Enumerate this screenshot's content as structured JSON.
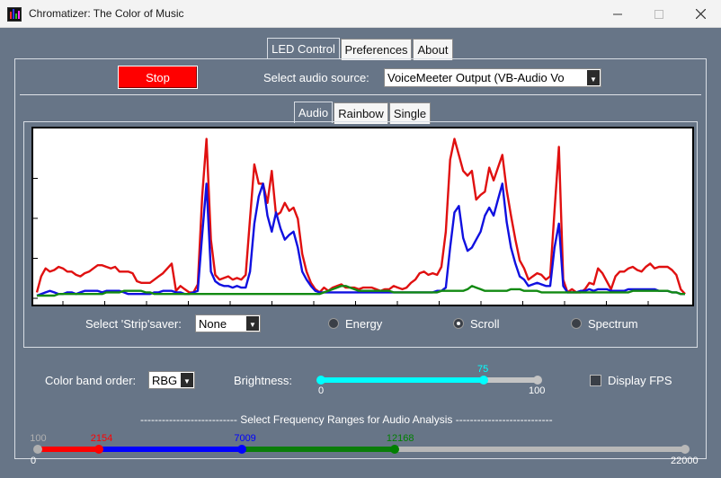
{
  "window": {
    "title": "Chromatizer: The Color of Music"
  },
  "main_tabs": [
    {
      "label": "LED Control",
      "active": true
    },
    {
      "label": "Preferences",
      "active": false
    },
    {
      "label": "About",
      "active": false
    }
  ],
  "controls": {
    "stop_label": "Stop",
    "audio_source_label": "Select audio source:",
    "audio_source_value": "VoiceMeeter Output (VB-Audio Vo"
  },
  "mode_tabs": [
    {
      "label": "Audio",
      "active": true
    },
    {
      "label": "Rainbow",
      "active": false
    },
    {
      "label": "Single",
      "active": false
    }
  ],
  "stripsaver": {
    "label": "Select 'Strip'saver:",
    "value": "None",
    "options": [
      {
        "label": "Energy",
        "checked": false
      },
      {
        "label": "Scroll",
        "checked": true
      },
      {
        "label": "Spectrum",
        "checked": false
      }
    ]
  },
  "color_band": {
    "label": "Color band order:",
    "value": "RBG"
  },
  "brightness": {
    "label": "Brightness:",
    "value": "75",
    "min": "0",
    "max": "100",
    "fraction": 0.75
  },
  "display_fps": {
    "label": "Display FPS",
    "checked": false
  },
  "frequency": {
    "title": "--------------------------- Select Frequency Ranges for Audio Analysis ---------------------------",
    "min": "0",
    "max": "22000",
    "markers": [
      {
        "label": "100",
        "value": 100,
        "color": "#b0b0b0"
      },
      {
        "label": "2154",
        "value": 2154,
        "color": "#ff0000"
      },
      {
        "label": "7009",
        "value": 7009,
        "color": "#0000ff"
      },
      {
        "label": "12168",
        "value": 12168,
        "color": "#008000"
      }
    ],
    "colors": {
      "red": "#ff0000",
      "blue": "#0000ff",
      "green": "#0a7d0a",
      "gray": "#b8b8b8"
    }
  },
  "chart_data": {
    "type": "line",
    "title": "",
    "xlabel": "",
    "ylabel": "",
    "x": [
      0,
      1,
      2,
      3,
      4,
      5,
      6,
      7,
      8,
      9,
      10,
      11,
      12,
      13,
      14,
      15,
      16,
      17,
      18,
      19,
      20,
      21,
      22,
      23,
      24,
      25,
      26,
      27,
      28,
      29,
      30,
      31,
      32,
      33,
      34,
      35,
      36,
      37,
      38,
      39,
      40,
      41,
      42,
      43,
      44,
      45,
      46,
      47,
      48,
      49,
      50,
      51,
      52,
      53,
      54,
      55,
      56,
      57,
      58,
      59,
      60,
      61,
      62,
      63,
      64,
      65,
      66,
      67,
      68,
      69,
      70,
      71,
      72,
      73,
      74,
      75,
      76,
      77,
      78,
      79,
      80,
      81,
      82,
      83,
      84,
      85,
      86,
      87,
      88,
      89,
      90,
      91,
      92,
      93,
      94,
      95,
      96,
      97,
      98,
      99,
      100,
      101,
      102,
      103,
      104,
      105,
      106,
      107,
      108,
      109,
      110,
      111,
      112,
      113,
      114,
      115,
      116,
      117,
      118,
      119,
      120,
      121,
      122,
      123,
      124,
      125,
      126,
      127,
      128,
      129,
      130,
      131,
      132,
      133,
      134,
      135,
      136,
      137,
      138,
      139,
      140,
      141,
      142,
      143,
      144,
      145,
      146,
      147,
      148,
      149
    ],
    "ylim": [
      0,
      100
    ],
    "grid": false,
    "series": [
      {
        "color": "#e01010",
        "values": [
          2,
          12,
          17,
          15,
          16,
          18,
          17,
          15,
          15,
          13,
          12,
          14,
          15,
          17,
          19,
          19,
          18,
          17,
          18,
          15,
          15,
          15,
          14,
          9,
          8,
          8,
          8,
          10,
          12,
          14,
          17,
          20,
          3,
          6,
          4,
          2,
          2,
          7,
          62,
          98,
          35,
          13,
          10,
          11,
          12,
          10,
          11,
          10,
          13,
          48,
          82,
          70,
          70,
          58,
          78,
          50,
          52,
          58,
          53,
          55,
          48,
          26,
          15,
          8,
          4,
          2,
          5,
          3,
          5,
          6,
          7,
          5,
          5,
          5,
          4,
          5,
          5,
          5,
          4,
          3,
          4,
          4,
          6,
          5,
          4,
          5,
          8,
          10,
          14,
          15,
          13,
          14,
          13,
          18,
          40,
          85,
          98,
          88,
          78,
          75,
          78,
          60,
          63,
          65,
          80,
          72,
          80,
          88,
          66,
          50,
          35,
          22,
          17,
          10,
          12,
          14,
          13,
          10,
          12,
          53,
          93,
          10,
          2,
          4,
          2,
          2,
          4,
          8,
          7,
          17,
          14,
          9,
          4,
          12,
          15,
          15,
          17,
          18,
          16,
          15,
          18,
          20,
          17,
          18,
          18,
          18,
          16,
          13,
          4,
          1
        ]
      },
      {
        "color": "#1010e0",
        "values": [
          0,
          1,
          2,
          3,
          2,
          1,
          1,
          2,
          2,
          1,
          2,
          3,
          3,
          3,
          3,
          2,
          3,
          3,
          3,
          3,
          2,
          1,
          1,
          1,
          1,
          1,
          1,
          2,
          2,
          3,
          3,
          3,
          2,
          2,
          1,
          1,
          2,
          3,
          38,
          70,
          15,
          9,
          7,
          6,
          6,
          5,
          6,
          5,
          5,
          15,
          45,
          62,
          70,
          50,
          40,
          52,
          42,
          35,
          38,
          40,
          30,
          15,
          10,
          6,
          3,
          2,
          2,
          2,
          2,
          2,
          2,
          2,
          2,
          2,
          2,
          2,
          2,
          2,
          2,
          2,
          2,
          2,
          2,
          2,
          2,
          2,
          2,
          2,
          2,
          2,
          2,
          2,
          3,
          3,
          5,
          30,
          52,
          56,
          36,
          28,
          30,
          35,
          40,
          50,
          55,
          50,
          60,
          70,
          46,
          30,
          20,
          12,
          10,
          6,
          7,
          8,
          7,
          6,
          6,
          30,
          45,
          6,
          2,
          2,
          2,
          3,
          3,
          4,
          3,
          4,
          4,
          4,
          3,
          3,
          3,
          3,
          4,
          4,
          4,
          4,
          4,
          4,
          4,
          3,
          3,
          3,
          2,
          2,
          1,
          1
        ]
      },
      {
        "color": "#128a12",
        "values": [
          0,
          0,
          0,
          0,
          0,
          1,
          1,
          1,
          1,
          1,
          1,
          1,
          1,
          1,
          1,
          1,
          2,
          2,
          2,
          2,
          3,
          3,
          3,
          3,
          3,
          2,
          2,
          1,
          1,
          1,
          1,
          1,
          1,
          1,
          1,
          1,
          1,
          1,
          1,
          1,
          1,
          1,
          1,
          1,
          1,
          1,
          1,
          1,
          1,
          1,
          1,
          1,
          1,
          1,
          1,
          1,
          1,
          1,
          1,
          1,
          1,
          1,
          1,
          1,
          1,
          1,
          2,
          3,
          4,
          5,
          6,
          6,
          5,
          4,
          3,
          3,
          3,
          3,
          3,
          3,
          3,
          3,
          2,
          2,
          2,
          2,
          2,
          2,
          2,
          2,
          2,
          2,
          2,
          3,
          3,
          3,
          3,
          3,
          3,
          4,
          6,
          5,
          4,
          3,
          3,
          3,
          3,
          3,
          3,
          4,
          4,
          4,
          3,
          3,
          3,
          3,
          2,
          2,
          2,
          2,
          2,
          2,
          2,
          2,
          2,
          2,
          2,
          2,
          2,
          2,
          2,
          2,
          2,
          2,
          2,
          2,
          2,
          3,
          3,
          3,
          3,
          3,
          3,
          3,
          3,
          3,
          2,
          2,
          1,
          1
        ]
      }
    ]
  }
}
